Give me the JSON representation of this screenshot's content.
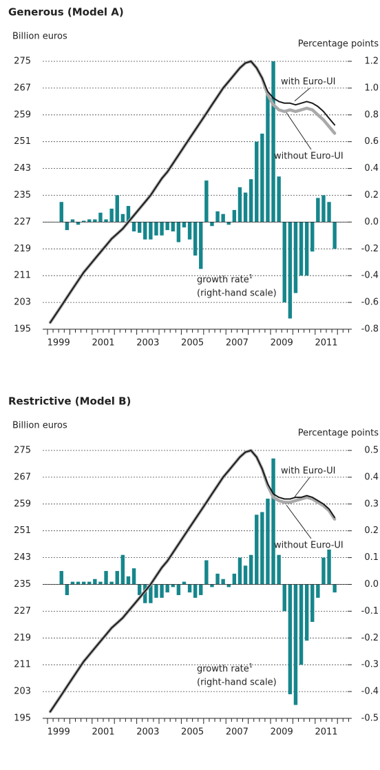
{
  "chart_data": [
    {
      "type": "combo",
      "title": "Generous (Model A)",
      "y_label": "Billion euros",
      "y2_label": "Percentage points",
      "categories": [
        "1999",
        null,
        null,
        null,
        null,
        null,
        null,
        null,
        "2001",
        null,
        null,
        null,
        null,
        null,
        null,
        null,
        "2003",
        null,
        null,
        null,
        null,
        null,
        null,
        null,
        "2005",
        null,
        null,
        null,
        null,
        null,
        null,
        null,
        "2007",
        null,
        null,
        null,
        null,
        null,
        null,
        null,
        "2009",
        null,
        null,
        null,
        null,
        null,
        null,
        null,
        "2011",
        null,
        null,
        null
      ],
      "ylim": [
        195,
        275
      ],
      "yticks": [
        195,
        203,
        211,
        219,
        227,
        235,
        243,
        251,
        259,
        267,
        275
      ],
      "y2lim": [
        -0.8,
        1.2
      ],
      "y2ticks": [
        -0.8,
        -0.6,
        -0.4,
        -0.2,
        {
          "value": 0,
          "label": "0.0"
        },
        0.2,
        0.4,
        0.6,
        0.8,
        {
          "value": 1,
          "label": "1.0"
        },
        1.2
      ],
      "grid": true,
      "note_mark": "1",
      "scale_note": "(right-hand scale)",
      "series": [
        {
          "name": "growth rate",
          "type": "bar",
          "axis": "y2",
          "color": "#16868c",
          "values": [
            null,
            null,
            0.15,
            -0.06,
            0.02,
            -0.02,
            0.01,
            0.02,
            0.02,
            0.07,
            0.02,
            0.1,
            0.2,
            0.06,
            0.12,
            -0.07,
            -0.08,
            -0.13,
            -0.13,
            -0.1,
            -0.1,
            -0.06,
            -0.07,
            -0.15,
            -0.04,
            -0.13,
            -0.25,
            -0.35,
            0.31,
            -0.03,
            0.08,
            0.06,
            -0.02,
            0.09,
            0.26,
            0.22,
            0.32,
            0.6,
            0.66,
            0.95,
            1.2,
            0.34,
            -0.6,
            -0.72,
            -0.53,
            -0.4,
            -0.4,
            -0.22,
            0.18,
            0.2,
            0.15,
            -0.2
          ]
        },
        {
          "name": "with Euro-UI",
          "type": "line",
          "color": "#1a1a1a",
          "values": [
            197,
            199.5,
            202,
            204.5,
            207,
            209.5,
            212,
            214,
            216,
            218,
            220,
            222,
            223.5,
            225,
            227,
            229,
            231,
            233,
            235,
            237.5,
            240,
            242,
            244.5,
            247,
            249.5,
            252,
            254.5,
            257,
            259.5,
            262,
            264.5,
            267,
            269,
            271,
            273,
            274.5,
            275,
            273,
            270,
            266,
            264,
            263,
            262.5,
            262.5,
            262,
            262.5,
            263,
            262.5,
            261.5,
            260,
            258,
            256
          ]
        },
        {
          "name": "without Euro-UI",
          "type": "line",
          "color": "#a9a9a9",
          "values": [
            197,
            199.5,
            202,
            204.5,
            207,
            209.5,
            212,
            214,
            216,
            218,
            220,
            222,
            223.5,
            225,
            227,
            229,
            231,
            233,
            235,
            237.5,
            240,
            242,
            244.5,
            247,
            249.5,
            252,
            254.5,
            257,
            259.5,
            262,
            264.5,
            267,
            269,
            271,
            273,
            274.5,
            275,
            273,
            270,
            265,
            262,
            260.5,
            260,
            260.5,
            260,
            260.5,
            261,
            260.5,
            259,
            257.5,
            255.5,
            253.5
          ]
        }
      ]
    },
    {
      "type": "combo",
      "title": "Restrictive (Model B)",
      "y_label": "Billion euros",
      "y2_label": "Percentage points",
      "categories": [
        "1999",
        null,
        null,
        null,
        null,
        null,
        null,
        null,
        "2001",
        null,
        null,
        null,
        null,
        null,
        null,
        null,
        "2003",
        null,
        null,
        null,
        null,
        null,
        null,
        null,
        "2005",
        null,
        null,
        null,
        null,
        null,
        null,
        null,
        "2007",
        null,
        null,
        null,
        null,
        null,
        null,
        null,
        "2009",
        null,
        null,
        null,
        null,
        null,
        null,
        null,
        "2011",
        null,
        null,
        null
      ],
      "ylim": [
        195,
        275
      ],
      "yticks": [
        195,
        203,
        211,
        219,
        227,
        235,
        243,
        251,
        259,
        267,
        275
      ],
      "y2lim": [
        -0.5,
        0.5
      ],
      "y2ticks": [
        -0.5,
        -0.4,
        -0.3,
        -0.2,
        -0.1,
        {
          "value": 0,
          "label": "0.0"
        },
        0.1,
        0.2,
        0.3,
        0.4,
        0.5
      ],
      "grid": true,
      "note_mark": "1",
      "scale_note": "(right-hand scale)",
      "series": [
        {
          "name": "growth rate",
          "type": "bar",
          "axis": "y2",
          "color": "#16868c",
          "values": [
            null,
            null,
            0.05,
            -0.04,
            0.01,
            0.01,
            0.01,
            0.01,
            0.02,
            0.01,
            0.05,
            0.01,
            0.05,
            0.11,
            0.03,
            0.06,
            -0.04,
            -0.07,
            -0.07,
            -0.05,
            -0.05,
            -0.03,
            -0.01,
            -0.04,
            0.01,
            -0.03,
            -0.05,
            -0.04,
            0.09,
            -0.01,
            0.04,
            0.02,
            -0.01,
            0.04,
            0.1,
            0.07,
            0.11,
            0.26,
            0.27,
            0.32,
            0.47,
            0.11,
            -0.1,
            -0.41,
            -0.45,
            -0.3,
            -0.21,
            -0.14,
            -0.05,
            0.1,
            0.13,
            -0.03
          ]
        },
        {
          "name": "with Euro-UI",
          "type": "line",
          "color": "#1a1a1a",
          "values": [
            197,
            199.5,
            202,
            204.5,
            207,
            209.5,
            212,
            214,
            216,
            218,
            220,
            222,
            223.5,
            225,
            227,
            229,
            231,
            233,
            235,
            237.5,
            240,
            242,
            244.5,
            247,
            249.5,
            252,
            254.5,
            257,
            259.5,
            262,
            264.5,
            267,
            269,
            271,
            273,
            274.5,
            275,
            273,
            269.5,
            265,
            262,
            261,
            260.5,
            260.5,
            261,
            261,
            261.5,
            261,
            260,
            259,
            257.5,
            255
          ]
        },
        {
          "name": "without Euro-UI",
          "type": "line",
          "color": "#a9a9a9",
          "values": [
            197,
            199.5,
            202,
            204.5,
            207,
            209.5,
            212,
            214,
            216,
            218,
            220,
            222,
            223.5,
            225,
            227,
            229,
            231,
            233,
            235,
            237.5,
            240,
            242,
            244.5,
            247,
            249.5,
            252,
            254.5,
            257,
            259.5,
            262,
            264.5,
            267,
            269,
            271,
            273,
            274.5,
            275,
            273,
            269.5,
            264.5,
            261,
            260,
            259.5,
            259.5,
            260,
            260.5,
            261,
            260.5,
            259.5,
            258.5,
            257,
            254.5
          ]
        }
      ]
    }
  ]
}
